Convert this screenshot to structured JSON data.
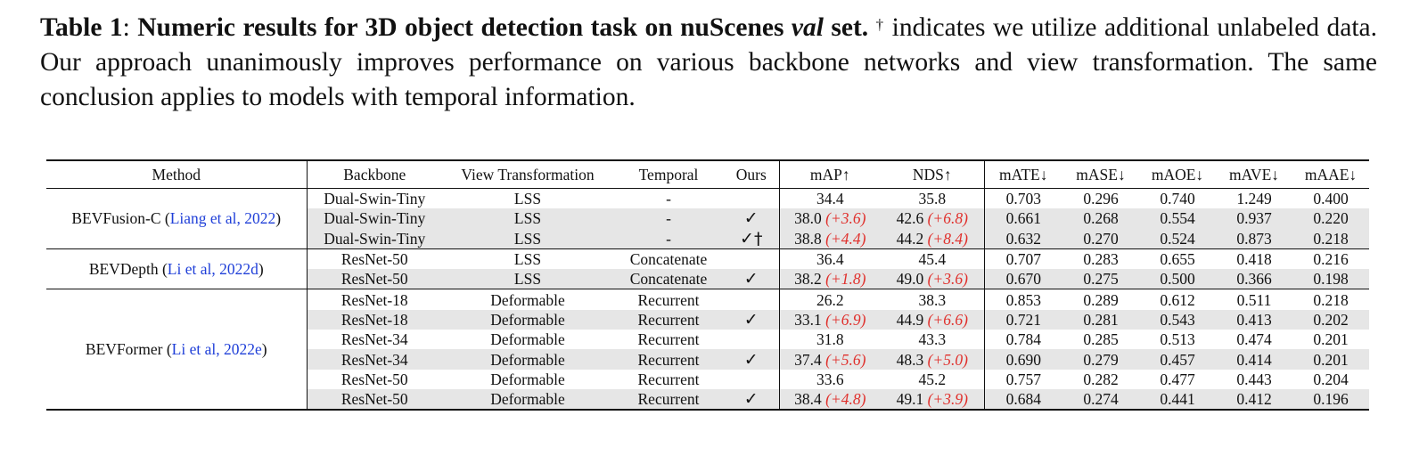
{
  "caption": {
    "label": "Table 1",
    "sep": ": ",
    "bold_a": "Numeric results for 3D object detection task on nuScenes ",
    "bold_italic": "val",
    "bold_b": " set.",
    "dagger": "†",
    "text": " indicates we utilize additional unlabeled data. Our approach unanimously improves performance on various backbone networks and view transformation. The same conclusion applies to models with temporal information."
  },
  "table": {
    "headers": [
      "Method",
      "Backbone",
      "View Transformation",
      "Temporal",
      "Ours",
      "mAP↑",
      "NDS↑",
      "mATE↓",
      "mASE↓",
      "mAOE↓",
      "mAVE↓",
      "mAAE↓"
    ],
    "groups": [
      {
        "method": "BEVFusion-C",
        "cite": "Liang et al, 2022",
        "rows": [
          {
            "backbone": "Dual-Swin-Tiny",
            "view": "LSS",
            "temporal": "-",
            "ours": "",
            "map": "34.4",
            "map_delta": "",
            "nds": "35.8",
            "nds_delta": "",
            "mate": "0.703",
            "mase": "0.296",
            "maoe": "0.740",
            "mave": "1.249",
            "maae": "0.400"
          },
          {
            "backbone": "Dual-Swin-Tiny",
            "view": "LSS",
            "temporal": "-",
            "ours": "✓",
            "map": "38.0",
            "map_delta": "(+3.6)",
            "nds": "42.6",
            "nds_delta": "(+6.8)",
            "mate": "0.661",
            "mase": "0.268",
            "maoe": "0.554",
            "mave": "0.937",
            "maae": "0.220"
          },
          {
            "backbone": "Dual-Swin-Tiny",
            "view": "LSS",
            "temporal": "-",
            "ours": "✓†",
            "map": "38.8",
            "map_delta": "(+4.4)",
            "nds": "44.2",
            "nds_delta": "(+8.4)",
            "mate": "0.632",
            "mase": "0.270",
            "maoe": "0.524",
            "mave": "0.873",
            "maae": "0.218"
          }
        ]
      },
      {
        "method": "BEVDepth",
        "cite": "Li et al, 2022d",
        "rows": [
          {
            "backbone": "ResNet-50",
            "view": "LSS",
            "temporal": "Concatenate",
            "ours": "",
            "map": "36.4",
            "map_delta": "",
            "nds": "45.4",
            "nds_delta": "",
            "mate": "0.707",
            "mase": "0.283",
            "maoe": "0.655",
            "mave": "0.418",
            "maae": "0.216"
          },
          {
            "backbone": "ResNet-50",
            "view": "LSS",
            "temporal": "Concatenate",
            "ours": "✓",
            "map": "38.2",
            "map_delta": "(+1.8)",
            "nds": "49.0",
            "nds_delta": "(+3.6)",
            "mate": "0.670",
            "mase": "0.275",
            "maoe": "0.500",
            "mave": "0.366",
            "maae": "0.198"
          }
        ]
      },
      {
        "method": "BEVFormer",
        "cite": "Li et al, 2022e",
        "rows": [
          {
            "backbone": "ResNet-18",
            "view": "Deformable",
            "temporal": "Recurrent",
            "ours": "",
            "map": "26.2",
            "map_delta": "",
            "nds": "38.3",
            "nds_delta": "",
            "mate": "0.853",
            "mase": "0.289",
            "maoe": "0.612",
            "mave": "0.511",
            "maae": "0.218"
          },
          {
            "backbone": "ResNet-18",
            "view": "Deformable",
            "temporal": "Recurrent",
            "ours": "✓",
            "map": "33.1",
            "map_delta": "(+6.9)",
            "nds": "44.9",
            "nds_delta": "(+6.6)",
            "mate": "0.721",
            "mase": "0.281",
            "maoe": "0.543",
            "mave": "0.413",
            "maae": "0.202"
          },
          {
            "backbone": "ResNet-34",
            "view": "Deformable",
            "temporal": "Recurrent",
            "ours": "",
            "map": "31.8",
            "map_delta": "",
            "nds": "43.3",
            "nds_delta": "",
            "mate": "0.784",
            "mase": "0.285",
            "maoe": "0.513",
            "mave": "0.474",
            "maae": "0.201"
          },
          {
            "backbone": "ResNet-34",
            "view": "Deformable",
            "temporal": "Recurrent",
            "ours": "✓",
            "map": "37.4",
            "map_delta": "(+5.6)",
            "nds": "48.3",
            "nds_delta": "(+5.0)",
            "mate": "0.690",
            "mase": "0.279",
            "maoe": "0.457",
            "mave": "0.414",
            "maae": "0.201"
          },
          {
            "backbone": "ResNet-50",
            "view": "Deformable",
            "temporal": "Recurrent",
            "ours": "",
            "map": "33.6",
            "map_delta": "",
            "nds": "45.2",
            "nds_delta": "",
            "mate": "0.757",
            "mase": "0.282",
            "maoe": "0.477",
            "mave": "0.443",
            "maae": "0.204"
          },
          {
            "backbone": "ResNet-50",
            "view": "Deformable",
            "temporal": "Recurrent",
            "ours": "✓",
            "map": "38.4",
            "map_delta": "(+4.8)",
            "nds": "49.1",
            "nds_delta": "(+3.9)",
            "mate": "0.684",
            "mase": "0.274",
            "maoe": "0.441",
            "mave": "0.412",
            "maae": "0.196"
          }
        ]
      }
    ]
  }
}
